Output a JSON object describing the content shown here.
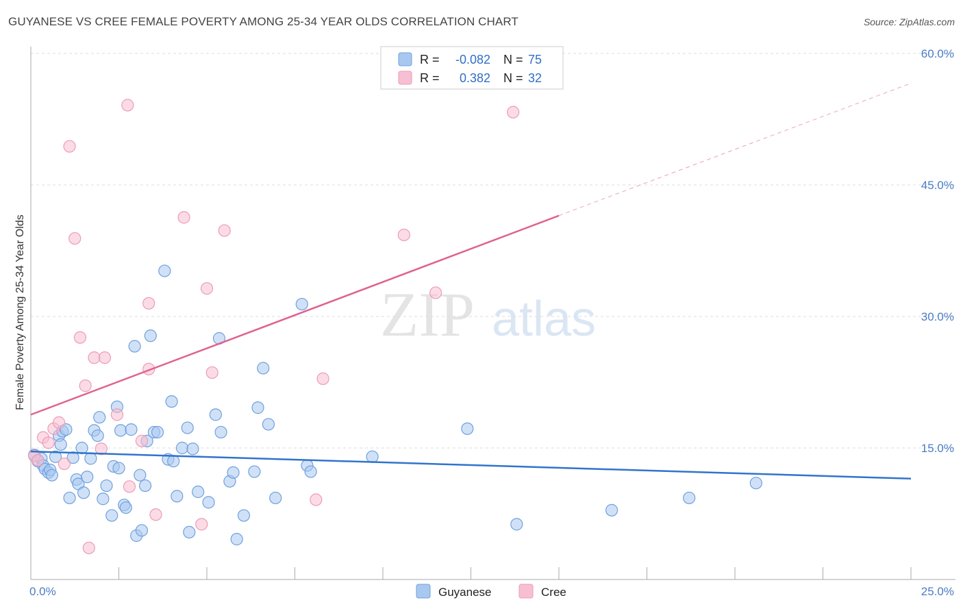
{
  "title": "GUYANESE VS CREE FEMALE POVERTY AMONG 25-34 YEAR OLDS CORRELATION CHART",
  "source": "Source: ZipAtlas.com",
  "watermark": {
    "zip": "ZIP",
    "atlas": "atlas"
  },
  "colors": {
    "guyanese_fill": "#a9c8f0",
    "guyanese_stroke": "#6fa0dd",
    "guyanese_line": "#2f74cc",
    "cree_fill": "#f7c0d2",
    "cree_stroke": "#ee9ab5",
    "cree_line": "#e0628e",
    "grid": "#dcdcdc",
    "tick_text": "#4a7cc4"
  },
  "legend": {
    "rows": [
      {
        "r_label": "R =",
        "r_value": "-0.082",
        "n_label": "N =",
        "n_value": "75"
      },
      {
        "r_label": "R =",
        "r_value": "0.382",
        "n_label": "N =",
        "n_value": "32"
      }
    ]
  },
  "bottom_legend": [
    "Guyanese",
    "Cree"
  ],
  "chart_data": {
    "type": "scatter",
    "title": "GUYANESE VS CREE FEMALE POVERTY AMONG 25-34 YEAR OLDS CORRELATION CHART",
    "xlabel": "",
    "ylabel": "Female Poverty Among 25-34 Year Olds",
    "xlim": [
      0,
      25
    ],
    "ylim": [
      0,
      60
    ],
    "x_tick_labels": [
      "0.0%",
      "25.0%"
    ],
    "y_tick_labels": [
      "15.0%",
      "30.0%",
      "45.0%",
      "60.0%"
    ],
    "y_ticks": [
      15,
      30,
      45,
      60
    ],
    "grid": true,
    "legend_position": "top-center",
    "series": [
      {
        "name": "Guyanese",
        "r": -0.082,
        "n": 75,
        "trend": {
          "x": [
            0,
            25
          ],
          "y": [
            14.6,
            11.5
          ]
        },
        "points": [
          [
            0.1,
            14.2
          ],
          [
            0.2,
            13.5
          ],
          [
            0.3,
            13.8
          ],
          [
            0.35,
            13.0
          ],
          [
            0.4,
            12.6
          ],
          [
            0.5,
            12.2
          ],
          [
            0.55,
            12.5
          ],
          [
            0.6,
            11.9
          ],
          [
            0.7,
            14.0
          ],
          [
            0.8,
            16.4
          ],
          [
            0.85,
            15.4
          ],
          [
            0.9,
            16.9
          ],
          [
            1.0,
            17.1
          ],
          [
            1.1,
            9.3
          ],
          [
            1.2,
            13.9
          ],
          [
            1.3,
            11.4
          ],
          [
            1.35,
            10.9
          ],
          [
            1.45,
            15.0
          ],
          [
            1.5,
            9.9
          ],
          [
            1.6,
            11.7
          ],
          [
            1.7,
            13.8
          ],
          [
            1.8,
            17.0
          ],
          [
            1.9,
            16.4
          ],
          [
            1.95,
            18.5
          ],
          [
            2.05,
            9.2
          ],
          [
            2.15,
            10.7
          ],
          [
            2.3,
            7.3
          ],
          [
            2.35,
            12.9
          ],
          [
            2.45,
            19.7
          ],
          [
            2.5,
            12.7
          ],
          [
            2.55,
            17.0
          ],
          [
            2.65,
            8.5
          ],
          [
            2.7,
            8.2
          ],
          [
            2.85,
            17.1
          ],
          [
            2.95,
            26.6
          ],
          [
            3.0,
            5.0
          ],
          [
            3.1,
            11.9
          ],
          [
            3.15,
            5.6
          ],
          [
            3.25,
            10.7
          ],
          [
            3.3,
            15.8
          ],
          [
            3.4,
            27.8
          ],
          [
            3.5,
            16.8
          ],
          [
            3.6,
            16.8
          ],
          [
            3.8,
            35.2
          ],
          [
            3.9,
            13.7
          ],
          [
            4.0,
            20.3
          ],
          [
            4.05,
            13.5
          ],
          [
            4.15,
            9.5
          ],
          [
            4.3,
            15.0
          ],
          [
            4.45,
            17.3
          ],
          [
            4.5,
            5.4
          ],
          [
            4.6,
            14.9
          ],
          [
            4.75,
            10.0
          ],
          [
            5.05,
            8.8
          ],
          [
            5.25,
            18.8
          ],
          [
            5.35,
            27.5
          ],
          [
            5.4,
            16.8
          ],
          [
            5.65,
            11.2
          ],
          [
            5.75,
            12.2
          ],
          [
            5.85,
            4.6
          ],
          [
            6.05,
            7.3
          ],
          [
            6.35,
            12.3
          ],
          [
            6.45,
            19.6
          ],
          [
            6.6,
            24.1
          ],
          [
            6.75,
            17.7
          ],
          [
            6.95,
            9.3
          ],
          [
            7.7,
            31.4
          ],
          [
            7.85,
            13.0
          ],
          [
            7.95,
            12.3
          ],
          [
            9.7,
            14.0
          ],
          [
            12.4,
            17.2
          ],
          [
            13.8,
            6.3
          ],
          [
            16.5,
            7.9
          ],
          [
            18.7,
            9.3
          ],
          [
            20.6,
            11.0
          ]
        ]
      },
      {
        "name": "Cree",
        "r": 0.382,
        "n": 32,
        "trend": {
          "x": [
            0,
            15
          ],
          "y": [
            18.8,
            41.5
          ]
        },
        "trend_dashed_to": {
          "x": 25,
          "y": 56.6
        },
        "points": [
          [
            0.1,
            14.1
          ],
          [
            0.2,
            13.6
          ],
          [
            0.35,
            16.2
          ],
          [
            0.5,
            15.6
          ],
          [
            0.65,
            17.2
          ],
          [
            0.8,
            17.9
          ],
          [
            0.95,
            13.2
          ],
          [
            1.1,
            49.4
          ],
          [
            1.25,
            38.9
          ],
          [
            1.4,
            27.6
          ],
          [
            1.55,
            22.1
          ],
          [
            1.65,
            3.6
          ],
          [
            1.8,
            25.3
          ],
          [
            2.0,
            14.9
          ],
          [
            2.1,
            25.3
          ],
          [
            2.45,
            18.8
          ],
          [
            2.8,
            10.6
          ],
          [
            2.75,
            54.1
          ],
          [
            3.15,
            15.8
          ],
          [
            3.35,
            31.5
          ],
          [
            3.35,
            24.0
          ],
          [
            3.55,
            7.4
          ],
          [
            4.35,
            41.3
          ],
          [
            4.85,
            6.3
          ],
          [
            5.0,
            33.2
          ],
          [
            5.15,
            23.6
          ],
          [
            5.5,
            39.8
          ],
          [
            8.1,
            9.1
          ],
          [
            8.3,
            22.9
          ],
          [
            10.6,
            39.3
          ],
          [
            11.5,
            32.7
          ],
          [
            13.7,
            53.3
          ]
        ]
      }
    ]
  }
}
